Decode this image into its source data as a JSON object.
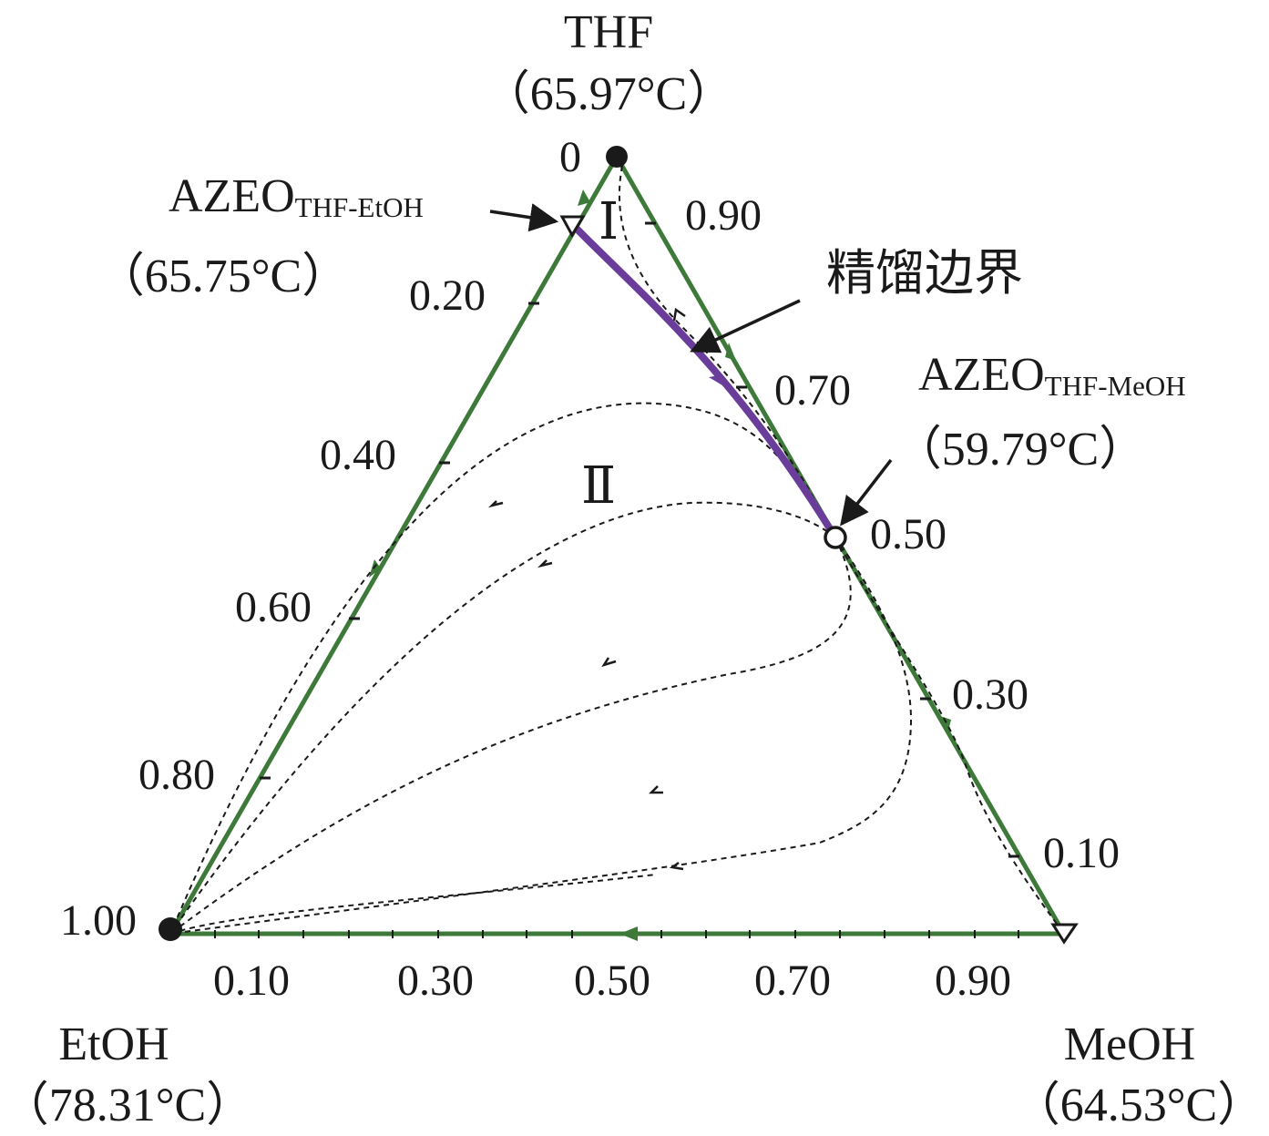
{
  "vertices": {
    "top": {
      "name": "THF",
      "temp": "（65.97°C）"
    },
    "left": {
      "name": "EtOH",
      "temp": "（78.31°C）"
    },
    "right": {
      "name": "MeOH",
      "temp": "（64.53°C）"
    }
  },
  "azeotropes": {
    "thf_etoh": {
      "main": "AZEO",
      "sub": "THF-EtOH",
      "temp": "（65.75°C）"
    },
    "thf_meoh": {
      "main": "AZEO",
      "sub": "THF-MeOH",
      "temp": "（59.79°C）"
    }
  },
  "boundary_label": "精馏边界",
  "regions": {
    "one": "Ⅰ",
    "two": "Ⅱ"
  },
  "left_ticks": [
    "0",
    "0.20",
    "0.40",
    "0.60",
    "0.80",
    "1.00"
  ],
  "right_ticks": [
    "0.90",
    "0.70",
    "0.50",
    "0.30",
    "0.10"
  ],
  "bottom_ticks": [
    "0.10",
    "0.30",
    "0.50",
    "0.70",
    "0.90"
  ],
  "colors": {
    "edge": "#3d7a3a",
    "boundary": "#6a3d9a",
    "residue": "#1a1a1a"
  }
}
